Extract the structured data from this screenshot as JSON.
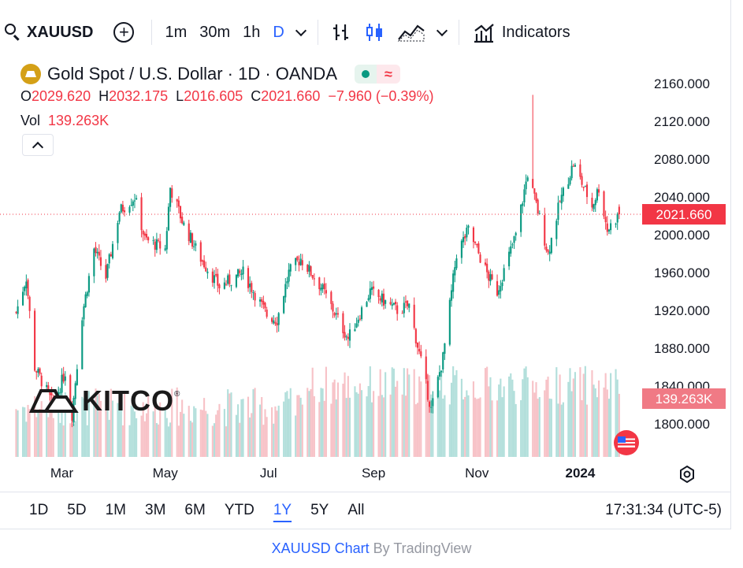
{
  "toolbar": {
    "symbol": "XAUUSD",
    "intervals": [
      "1m",
      "30m",
      "1h",
      "D"
    ],
    "active_interval": "D",
    "indicators_label": "Indicators"
  },
  "legend": {
    "title": "Gold Spot / U.S. Dollar · 1D · OANDA",
    "open_key": "O",
    "open": "2029.620",
    "high_key": "H",
    "high": "2032.175",
    "low_key": "L",
    "low": "2016.605",
    "close_key": "C",
    "close": "2021.660",
    "change": "−7.960 (−0.39%)",
    "vol_key": "Vol",
    "vol": "139.263K"
  },
  "watermark": {
    "text": "KITCO",
    "mark": "®"
  },
  "price_labels": {
    "last": "2021.660",
    "volume": "139.263K"
  },
  "range_buttons": [
    "1D",
    "5D",
    "1M",
    "3M",
    "6M",
    "YTD",
    "1Y",
    "5Y",
    "All"
  ],
  "selected_range": "1Y",
  "clock": "17:31:34 (UTC-5)",
  "footer": {
    "link": "XAUUSD Chart",
    "by": "By TradingView"
  },
  "colors": {
    "up": "#089981",
    "down": "#f23645",
    "up_vol": "#b2dfdb",
    "down_vol": "#f7c2c7",
    "accent": "#2962ff"
  },
  "chart_data": {
    "type": "candlestick",
    "y_ticks": [
      "2160.000",
      "2120.000",
      "2080.000",
      "2040.000",
      "2000.000",
      "1960.000",
      "1920.000",
      "1880.000",
      "1840.000",
      "1800.000"
    ],
    "y_range": [
      1765,
      2190
    ],
    "x_ticks": [
      "Mar",
      "May",
      "Jul",
      "Sep",
      "Nov",
      "2024"
    ],
    "x_range": [
      "2023-01-30",
      "2024-01-25"
    ],
    "last_price": 2021.66,
    "close_path": [
      {
        "date": "2023-02-02",
        "close": 1918
      },
      {
        "date": "2023-02-08",
        "close": 1955
      },
      {
        "date": "2023-02-13",
        "close": 1860
      },
      {
        "date": "2023-02-24",
        "close": 1820
      },
      {
        "date": "2023-03-03",
        "close": 1855
      },
      {
        "date": "2023-03-07",
        "close": 1810
      },
      {
        "date": "2023-03-13",
        "close": 1915
      },
      {
        "date": "2023-03-20",
        "close": 1985
      },
      {
        "date": "2023-03-27",
        "close": 1955
      },
      {
        "date": "2023-04-04",
        "close": 2025
      },
      {
        "date": "2023-04-13",
        "close": 2040
      },
      {
        "date": "2023-04-19",
        "close": 1995
      },
      {
        "date": "2023-05-01",
        "close": 1985
      },
      {
        "date": "2023-05-04",
        "close": 2050
      },
      {
        "date": "2023-05-12",
        "close": 2010
      },
      {
        "date": "2023-05-22",
        "close": 1975
      },
      {
        "date": "2023-06-02",
        "close": 1945
      },
      {
        "date": "2023-06-16",
        "close": 1960
      },
      {
        "date": "2023-06-30",
        "close": 1915
      },
      {
        "date": "2023-07-06",
        "close": 1910
      },
      {
        "date": "2023-07-13",
        "close": 1960
      },
      {
        "date": "2023-07-20",
        "close": 1975
      },
      {
        "date": "2023-08-01",
        "close": 1945
      },
      {
        "date": "2023-08-17",
        "close": 1890
      },
      {
        "date": "2023-08-30",
        "close": 1940
      },
      {
        "date": "2023-09-15",
        "close": 1920
      },
      {
        "date": "2023-09-22",
        "close": 1925
      },
      {
        "date": "2023-10-05",
        "close": 1815
      },
      {
        "date": "2023-10-12",
        "close": 1870
      },
      {
        "date": "2023-10-20",
        "close": 1980
      },
      {
        "date": "2023-10-27",
        "close": 2005
      },
      {
        "date": "2023-11-08",
        "close": 1955
      },
      {
        "date": "2023-11-13",
        "close": 1940
      },
      {
        "date": "2023-11-24",
        "close": 2000
      },
      {
        "date": "2023-12-01",
        "close": 2065
      },
      {
        "date": "2023-12-07",
        "close": 2025
      },
      {
        "date": "2023-12-13",
        "close": 1980
      },
      {
        "date": "2023-12-20",
        "close": 2035
      },
      {
        "date": "2023-12-28",
        "close": 2075
      },
      {
        "date": "2024-01-08",
        "close": 2030
      },
      {
        "date": "2024-01-12",
        "close": 2050
      },
      {
        "date": "2024-01-17",
        "close": 2005
      },
      {
        "date": "2024-01-24",
        "close": 2021.66
      }
    ],
    "spike": {
      "date": "2023-12-04",
      "high": 2148
    }
  }
}
